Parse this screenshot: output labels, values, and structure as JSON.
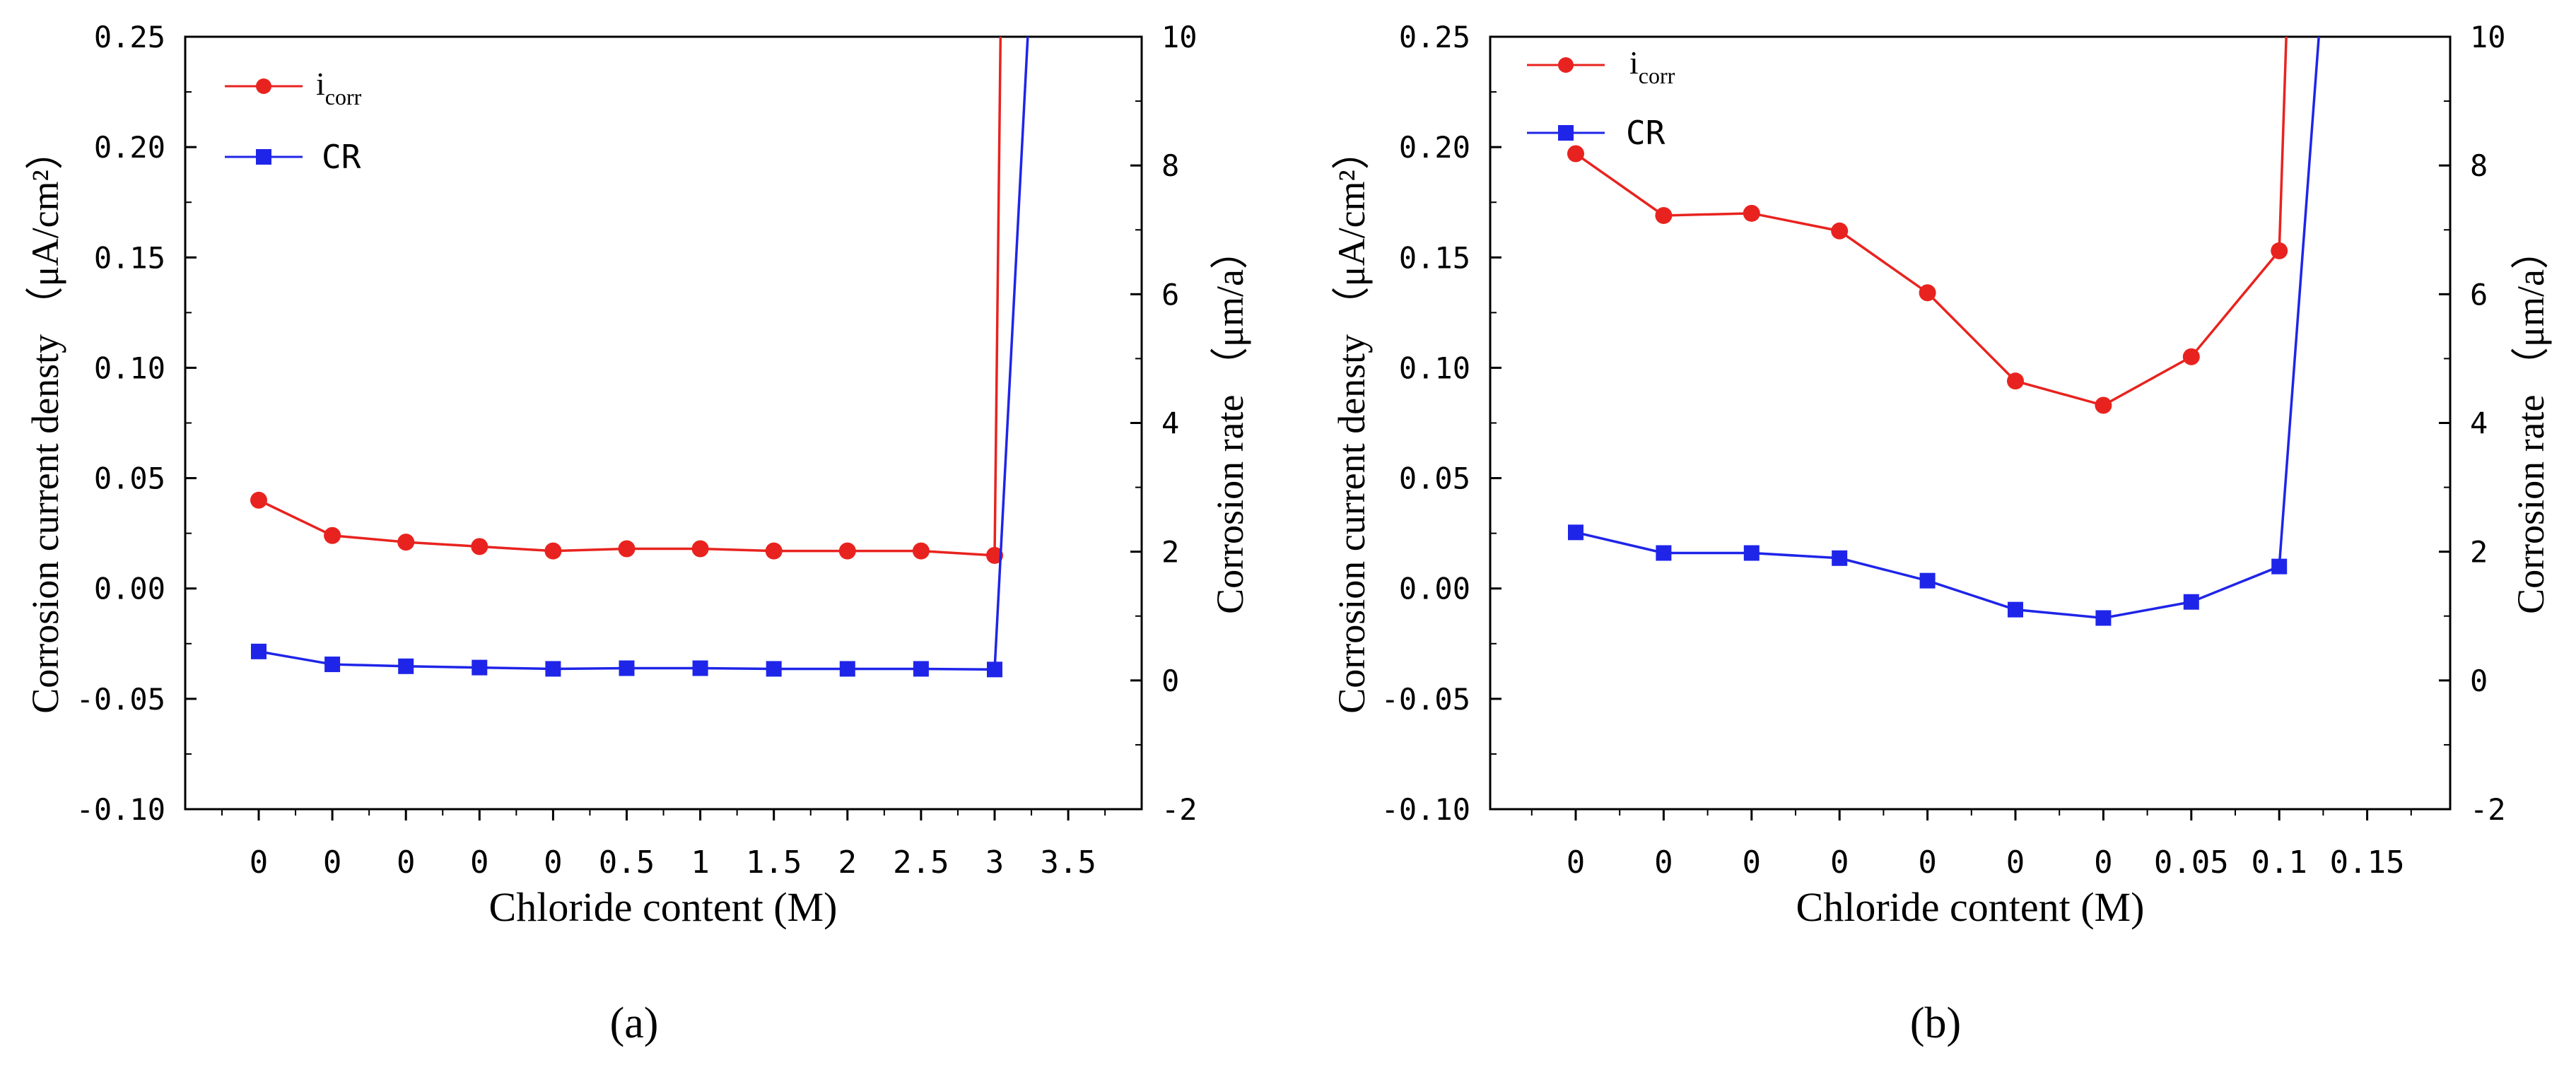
{
  "chart_data": [
    {
      "type": "line",
      "panel_label": "(a)",
      "xlabel": "Chloride content (M)",
      "ylabel_left": "Corrosion current densty （μA/cm²）",
      "ylabel_right": "Corrosion rate （μm/a）",
      "y_left_range": [
        -0.1,
        0.25
      ],
      "y_right_range": [
        -2,
        10
      ],
      "y_left_ticks": [
        "0.25",
        "0.20",
        "0.15",
        "0.10",
        "0.05",
        "0.00",
        "-0.05",
        "-0.10"
      ],
      "y_right_ticks": [
        "10",
        "8",
        "6",
        "4",
        "2",
        "0",
        "-2"
      ],
      "x_tick_labels": [
        "0",
        "0",
        "0",
        "0",
        "0",
        "0.5",
        "1",
        "1.5",
        "2",
        "2.5",
        "3",
        "3.5"
      ],
      "legend": [
        {
          "name": "i",
          "subscript": "corr",
          "color": "#e8231f",
          "marker": "circle"
        },
        {
          "name": "CR",
          "color": "#1f25e8",
          "marker": "square"
        }
      ],
      "series": [
        {
          "name": "icorr",
          "axis": "left",
          "color": "#e8231f",
          "marker": "circle",
          "values": [
            0.04,
            0.024,
            0.021,
            0.019,
            0.017,
            0.018,
            0.018,
            0.017,
            0.017,
            0.017,
            0.015
          ],
          "end_value": 0.25
        },
        {
          "name": "CR",
          "axis": "right",
          "color": "#1f25e8",
          "marker": "square",
          "values": [
            0.45,
            0.25,
            0.22,
            0.2,
            0.18,
            0.19,
            0.19,
            0.18,
            0.18,
            0.18,
            0.17
          ],
          "end_value": 10
        }
      ]
    },
    {
      "type": "line",
      "panel_label": "(b)",
      "xlabel": "Chloride content (M)",
      "ylabel_left": "Corrosion current densty （μA/cm²）",
      "ylabel_right": "Corrosion rate （μm/a）",
      "y_left_range": [
        -0.1,
        0.25
      ],
      "y_right_range": [
        -2,
        10
      ],
      "y_left_ticks": [
        "0.25",
        "0.20",
        "0.15",
        "0.10",
        "0.05",
        "0.00",
        "-0.05",
        "-0.10"
      ],
      "y_right_ticks": [
        "10",
        "8",
        "6",
        "4",
        "2",
        "0",
        "-2"
      ],
      "x_tick_labels": [
        "0",
        "0",
        "0",
        "0",
        "0",
        "0",
        "0",
        "0.05",
        "0.1",
        "0.15"
      ],
      "legend": [
        {
          "name": "i",
          "subscript": "corr",
          "color": "#e8231f",
          "marker": "circle"
        },
        {
          "name": "CR",
          "color": "#1f25e8",
          "marker": "square"
        }
      ],
      "series": [
        {
          "name": "icorr",
          "axis": "left",
          "color": "#e8231f",
          "marker": "circle",
          "values": [
            0.197,
            0.169,
            0.17,
            0.162,
            0.134,
            0.094,
            0.083,
            0.105,
            0.153
          ],
          "end_value": 0.25
        },
        {
          "name": "CR",
          "axis": "right",
          "color": "#1f25e8",
          "marker": "square",
          "values": [
            2.3,
            1.98,
            1.98,
            1.9,
            1.55,
            1.1,
            0.97,
            1.22,
            1.77
          ],
          "end_value": 10
        }
      ]
    }
  ]
}
